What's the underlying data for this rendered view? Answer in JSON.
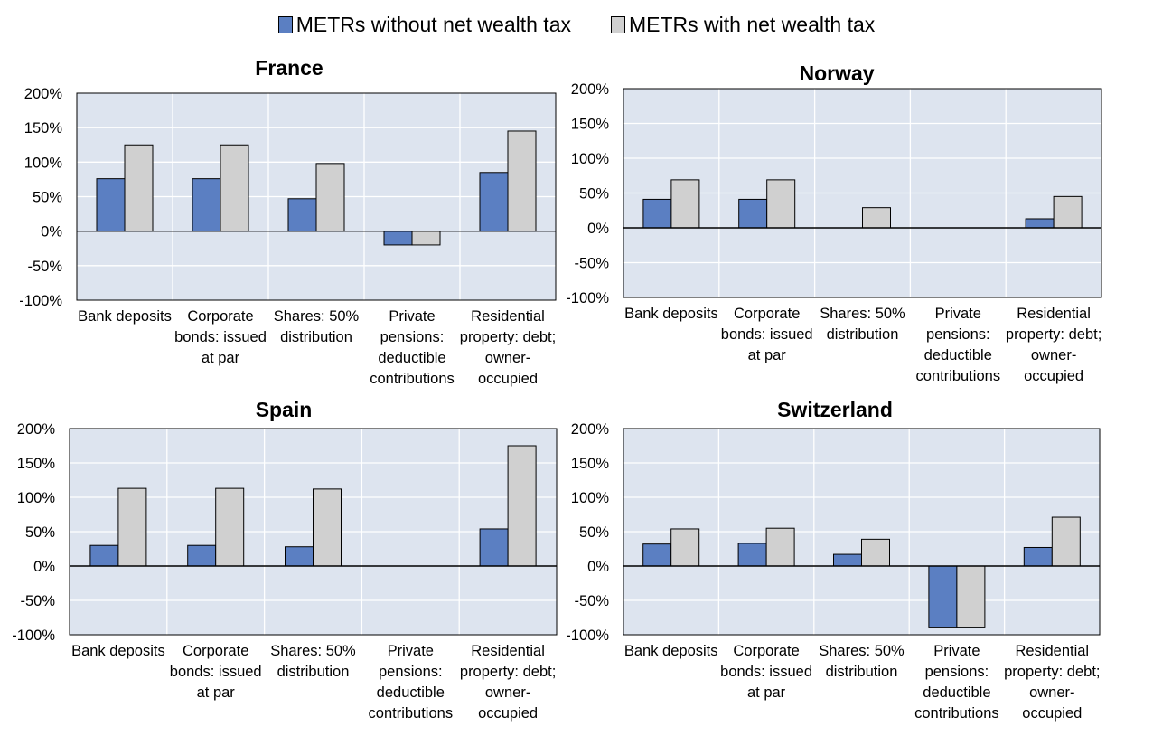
{
  "legend": {
    "s1": "METRs without net wealth tax",
    "s2": "METRs with net wealth tax"
  },
  "colors": {
    "s1": "#5b7fc2",
    "s2": "#d0d0d0",
    "plot_bg": "#dde4ef",
    "grid": "#ffffff"
  },
  "chart_data": [
    {
      "type": "bar",
      "title": "France",
      "categories": [
        "Bank deposits",
        "Corporate bonds: issued at par",
        "Shares: 50% distribution",
        "Private pensions: deductible contributions",
        "Residential property: debt; owner-occupied"
      ],
      "category_lines": [
        [
          "Bank deposits"
        ],
        [
          "Corporate",
          "bonds: issued",
          "at par"
        ],
        [
          "Shares: 50%",
          "distribution"
        ],
        [
          "Private",
          "pensions:",
          "deductible",
          "contributions"
        ],
        [
          "Residential",
          "property: debt;",
          "owner-",
          "occupied"
        ]
      ],
      "series": [
        {
          "name": "METRs without net wealth tax",
          "values": [
            76,
            76,
            47,
            -20,
            85
          ]
        },
        {
          "name": "METRs with net wealth tax",
          "values": [
            125,
            125,
            98,
            -20,
            145
          ]
        }
      ],
      "ylim": [
        -100,
        200
      ],
      "yticks": [
        "-100%",
        "-50%",
        "0%",
        "50%",
        "100%",
        "150%",
        "200%"
      ]
    },
    {
      "type": "bar",
      "title": "Norway",
      "categories": [
        "Bank deposits",
        "Corporate bonds: issued at par",
        "Shares: 50% distribution",
        "Private pensions: deductible contributions",
        "Residential property: debt; owner-occupied"
      ],
      "category_lines": [
        [
          "Bank deposits"
        ],
        [
          "Corporate",
          "bonds: issued",
          "at par"
        ],
        [
          "Shares: 50%",
          "distribution"
        ],
        [
          "Private",
          "pensions:",
          "deductible",
          "contributions"
        ],
        [
          "Residential",
          "property: debt;",
          "owner-",
          "occupied"
        ]
      ],
      "series": [
        {
          "name": "METRs without net wealth tax",
          "values": [
            41,
            41,
            0,
            0,
            13
          ]
        },
        {
          "name": "METRs with net wealth tax",
          "values": [
            69,
            69,
            29,
            0,
            45
          ]
        }
      ],
      "ylim": [
        -100,
        200
      ],
      "yticks": [
        "-100%",
        "-50%",
        "0%",
        "50%",
        "100%",
        "150%",
        "200%"
      ]
    },
    {
      "type": "bar",
      "title": "Spain",
      "categories": [
        "Bank deposits",
        "Corporate bonds: issued at par",
        "Shares: 50% distribution",
        "Private pensions: deductible contributions",
        "Residential property: debt; owner-occupied"
      ],
      "category_lines": [
        [
          "Bank deposits"
        ],
        [
          "Corporate",
          "bonds: issued",
          "at par"
        ],
        [
          "Shares: 50%",
          "distribution"
        ],
        [
          "Private",
          "pensions:",
          "deductible",
          "contributions"
        ],
        [
          "Residential",
          "property: debt;",
          "owner-",
          "occupied"
        ]
      ],
      "series": [
        {
          "name": "METRs without net wealth tax",
          "values": [
            30,
            30,
            28,
            0,
            54
          ]
        },
        {
          "name": "METRs with net wealth tax",
          "values": [
            113,
            113,
            112,
            0,
            175
          ]
        }
      ],
      "ylim": [
        -100,
        200
      ],
      "yticks": [
        "-100%",
        "-50%",
        "0%",
        "50%",
        "100%",
        "150%",
        "200%"
      ]
    },
    {
      "type": "bar",
      "title": "Switzerland",
      "categories": [
        "Bank deposits",
        "Corporate bonds: issued at par",
        "Shares: 50% distribution",
        "Private pensions: deductible contributions",
        "Residential property: debt; owner-occupied"
      ],
      "category_lines": [
        [
          "Bank deposits"
        ],
        [
          "Corporate",
          "bonds: issued",
          "at par"
        ],
        [
          "Shares: 50%",
          "distribution"
        ],
        [
          "Private",
          "pensions:",
          "deductible",
          "contributions"
        ],
        [
          "Residential",
          "property: debt;",
          "owner-",
          "occupied"
        ]
      ],
      "series": [
        {
          "name": "METRs without net wealth tax",
          "values": [
            32,
            33,
            17,
            -90,
            27
          ]
        },
        {
          "name": "METRs with net wealth tax",
          "values": [
            54,
            55,
            39,
            -90,
            71
          ]
        }
      ],
      "ylim": [
        -100,
        200
      ],
      "yticks": [
        "-100%",
        "-50%",
        "0%",
        "50%",
        "100%",
        "150%",
        "200%"
      ]
    }
  ]
}
